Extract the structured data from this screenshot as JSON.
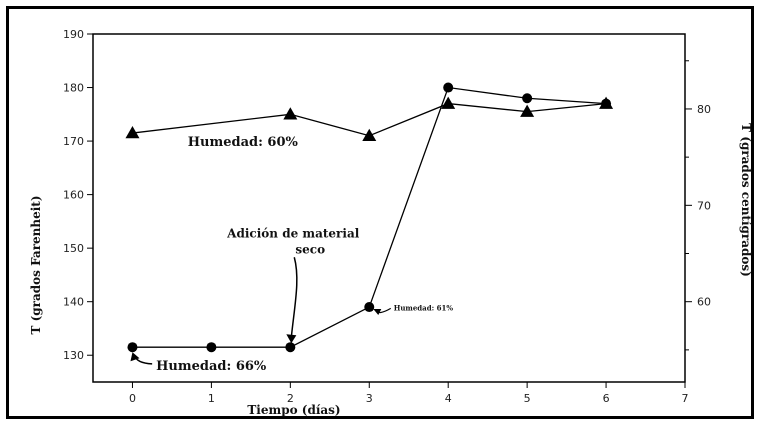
{
  "chart_data": {
    "type": "line",
    "xlabel": "Tiempo (días)",
    "ylabel_left": "T (grados Farenheit)",
    "ylabel_right": "T (grados centígrados)",
    "xlim": [
      -0.5,
      7
    ],
    "ylim_left": [
      125,
      190
    ],
    "xticks": [
      0,
      1,
      2,
      3,
      4,
      5,
      6,
      7
    ],
    "xtick_labels": [
      "0",
      "1",
      "2",
      "3",
      "4",
      "5",
      "6",
      "7"
    ],
    "yticks_left": [
      130,
      140,
      150,
      160,
      170,
      180,
      190
    ],
    "ytick_labels_left": [
      "130",
      "140",
      "150",
      "160",
      "170",
      "180",
      "190"
    ],
    "yticks_right_c": [
      60,
      70,
      80
    ],
    "ytick_labels_right": [
      "60",
      "70",
      "80"
    ],
    "grid": false,
    "series": [
      {
        "marker": "triangle",
        "x": [
          0,
          2,
          3,
          4,
          5,
          6
        ],
        "y": [
          171.5,
          175,
          171,
          177,
          175.5,
          177
        ]
      },
      {
        "marker": "circle",
        "x": [
          0,
          1,
          2,
          3,
          4,
          5,
          6
        ],
        "y": [
          131.5,
          131.5,
          131.5,
          139,
          180,
          178,
          177
        ]
      }
    ],
    "annotations": [
      {
        "text": "Humedad: 60%",
        "x": 0.7,
        "y": 170
      },
      {
        "text": "Humedad: 66%",
        "x": 0.3,
        "y": 129.5
      },
      {
        "text": "Humedad: 61%",
        "x": 3.5,
        "y": 138
      },
      {
        "lines": [
          "Adición de material",
          "seco"
        ],
        "x": 2.1,
        "y": 150.5
      }
    ]
  }
}
